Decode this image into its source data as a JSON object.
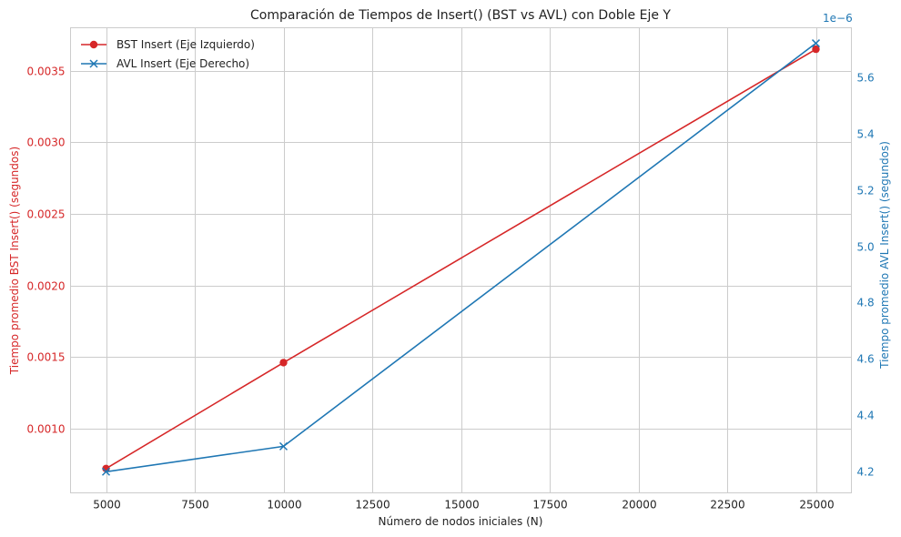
{
  "chart_data": {
    "type": "line",
    "title": "Comparación de Tiempos de Insert() (BST vs AVL) con Doble Eje Y",
    "xlabel": "Número de nodos iniciales (N)",
    "ylabel_left": "Tiempo promedio BST Insert() (segundos)",
    "ylabel_right": "Tiempo promedio AVL Insert() (segundos)",
    "right_axis_offset_label": "1e−6",
    "x": [
      5000,
      10000,
      25000
    ],
    "xlim": [
      4000,
      26000
    ],
    "xticks": [
      5000,
      7500,
      10000,
      12500,
      15000,
      17500,
      20000,
      22500,
      25000
    ],
    "xtick_labels": [
      "5000",
      "7500",
      "10000",
      "12500",
      "15000",
      "17500",
      "20000",
      "22500",
      "25000"
    ],
    "ylim_left": [
      0.00055,
      0.0038
    ],
    "yticks_left": [
      0.001,
      0.0015,
      0.002,
      0.0025,
      0.003,
      0.0035
    ],
    "ytick_labels_left": [
      "0.0010",
      "0.0015",
      "0.0020",
      "0.0025",
      "0.0030",
      "0.0035"
    ],
    "ylim_right": [
      4.125,
      5.775
    ],
    "yticks_right": [
      4.2,
      4.4,
      4.6,
      4.8,
      5.0,
      5.2,
      5.4,
      5.6
    ],
    "ytick_labels_right": [
      "4.2",
      "4.4",
      "4.6",
      "4.8",
      "5.0",
      "5.2",
      "5.4",
      "5.6"
    ],
    "grid": true,
    "legend_position": "top-left",
    "series": [
      {
        "name": "BST Insert (Eje Izquierdo)",
        "axis": "left",
        "marker": "circle",
        "color": "#d62728",
        "values": [
          0.00072,
          0.00146,
          0.00365
        ]
      },
      {
        "name": "AVL Insert (Eje Derecho)",
        "axis": "right",
        "marker": "x",
        "color": "#1f77b4",
        "values": [
          4.2,
          4.29,
          5.72
        ]
      }
    ],
    "colors": {
      "left_axis": "#d62728",
      "right_axis": "#1f77b4",
      "grid": "#cccccc",
      "spine": "#cccccc",
      "text": "#222222"
    }
  }
}
